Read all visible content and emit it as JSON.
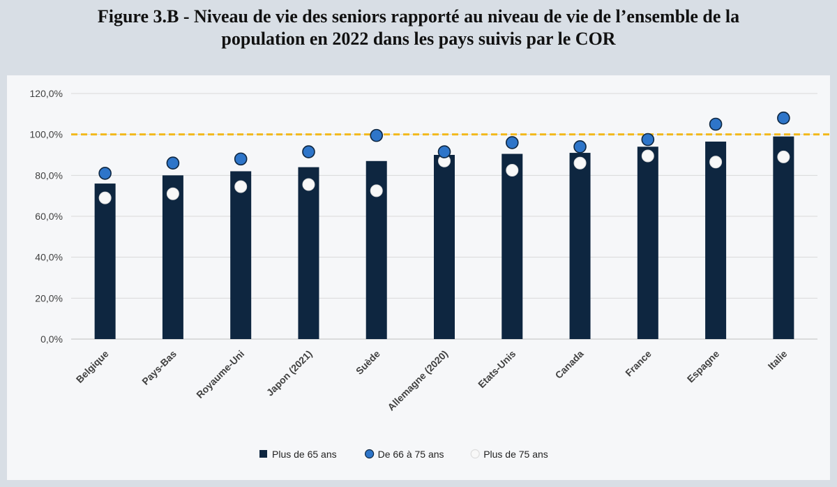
{
  "title_line1": "Figure 3.B - Niveau de vie des seniors rapporté au niveau de vie de l’ensemble de la",
  "title_line2": "population en 2022 dans les pays suivis par le COR",
  "colors": {
    "bar": "#0e2640",
    "dot_66_75": "#2e75c9",
    "dot_75_plus": "#f8f8f8",
    "reference_line": "#f2b81c",
    "grid": "#d9d9d9"
  },
  "chart_data": {
    "type": "bar",
    "categories": [
      "Belgique",
      "Pays-Bas",
      "Royaume-Uni",
      "Japon (2021)",
      "Suède",
      "Allemagne (2020)",
      "Etats-Unis",
      "Canada",
      "France",
      "Espagne",
      "Italie"
    ],
    "series": [
      {
        "name": "Plus de 65 ans",
        "kind": "bar",
        "values": [
          76,
          80,
          82,
          84,
          87,
          90,
          90.5,
          91,
          94,
          96.5,
          99
        ]
      },
      {
        "name": "De 66 à 75 ans",
        "kind": "dot",
        "values": [
          81,
          86,
          88,
          91.5,
          99.5,
          91.5,
          96,
          94,
          97.5,
          105,
          108
        ]
      },
      {
        "name": "Plus de 75 ans",
        "kind": "dot",
        "values": [
          69,
          71,
          74.5,
          75.5,
          72.5,
          87,
          82.5,
          86,
          89.5,
          86.5,
          89
        ]
      }
    ],
    "reference_line": {
      "value": 100,
      "style": "dashed"
    },
    "ylim": [
      0,
      120
    ],
    "yticks": [
      0,
      20,
      40,
      60,
      80,
      100,
      120
    ],
    "ytick_labels": [
      "0,0%",
      "20,0%",
      "40,0%",
      "60,0%",
      "80,0%",
      "100,0%",
      "120,0%"
    ],
    "grid": true,
    "legend_position": "bottom"
  }
}
